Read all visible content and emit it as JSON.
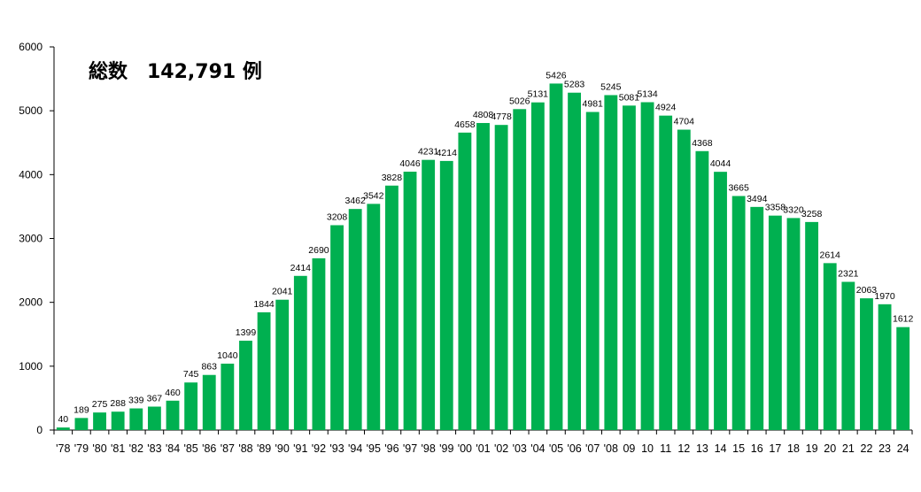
{
  "chart_data": {
    "type": "bar",
    "title": "総数　142,791 例",
    "xlabel": "",
    "ylabel": "",
    "ylim": [
      0,
      6000
    ],
    "yticks": [
      0,
      1000,
      2000,
      3000,
      4000,
      5000,
      6000
    ],
    "grid": false,
    "bar_color": "#00b050",
    "categories": [
      "'78",
      "'79",
      "'80",
      "'81",
      "'82",
      "'83",
      "'84",
      "'85",
      "'86",
      "'87",
      "'88",
      "'89",
      "'90",
      "'91",
      "'92",
      "'93",
      "'94",
      "'95",
      "'96",
      "'97",
      "'98",
      "'99",
      "'00",
      "'01",
      "'02",
      "'03",
      "'04",
      "'05",
      "'06",
      "'07",
      "'08",
      "09",
      "10",
      "11",
      "12",
      "13",
      "14",
      "15",
      "16",
      "17",
      "18",
      "19",
      "20",
      "21",
      "22",
      "23",
      "24"
    ],
    "values": [
      40,
      189,
      275,
      288,
      339,
      367,
      460,
      745,
      863,
      1040,
      1399,
      1844,
      2041,
      2414,
      2690,
      3208,
      3462,
      3542,
      3828,
      4046,
      4231,
      4214,
      4658,
      4808,
      4778,
      5026,
      5131,
      5426,
      5283,
      4981,
      5245,
      5081,
      5134,
      4924,
      4704,
      4368,
      4044,
      3665,
      3494,
      3358,
      3320,
      3258,
      2614,
      2321,
      2063,
      1970,
      1612
    ]
  }
}
